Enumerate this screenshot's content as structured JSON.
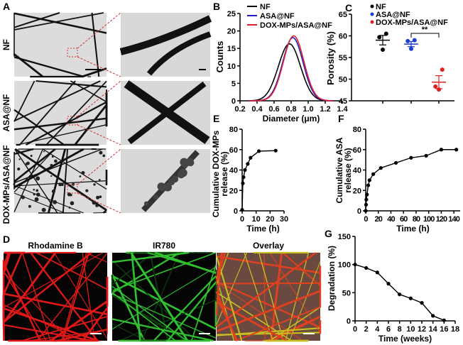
{
  "panel_labels": {
    "A": "A",
    "B": "B",
    "C": "C",
    "D": "D",
    "E": "E",
    "F": "F",
    "G": "G"
  },
  "panel_a": {
    "rows": [
      "NF",
      "ASA@NF",
      "DOX-MPs/ASA@NF"
    ]
  },
  "panel_d": {
    "channels": [
      "Rhodamine B",
      "IR780",
      "Overlay"
    ],
    "colors": {
      "rhodamine": "#e01010",
      "ir780": "#30c030"
    }
  },
  "chart_data": [
    {
      "id": "B",
      "type": "line",
      "xlabel": "Diameter (μm)",
      "ylabel": "Counts",
      "xlim": [
        0.2,
        1.4
      ],
      "ylim": [
        0,
        25
      ],
      "xticks": [
        "0.2",
        "0.4",
        "0.6",
        "0.8",
        "1.0",
        "1.2",
        "1.4"
      ],
      "yticks": [
        "0",
        "5",
        "10",
        "15",
        "20",
        "25"
      ],
      "legend": "top-right",
      "series": [
        {
          "name": "NF",
          "color": "#000000",
          "peak_x": 0.78,
          "peak_y": 16.3,
          "sd": 0.13
        },
        {
          "name": "ASA@NF",
          "color": "#2020c0",
          "peak_x": 0.82,
          "peak_y": 18.1,
          "sd": 0.12
        },
        {
          "name": "DOX-MPs/ASA@NF",
          "color": "#e02030",
          "peak_x": 0.83,
          "peak_y": 18.6,
          "sd": 0.12
        }
      ]
    },
    {
      "id": "C",
      "type": "scatter",
      "ylabel": "Porosity (%)",
      "ylim": [
        45,
        65
      ],
      "yticks": [
        "45",
        "50",
        "55",
        "60",
        "65"
      ],
      "legend": "top",
      "annotation": "**",
      "series": [
        {
          "name": "NF",
          "color": "#000000",
          "values": [
            60.5,
            59.7,
            56.8
          ],
          "mean": 59.0,
          "sem": 1.1
        },
        {
          "name": "ASA@NF",
          "color": "#1a3fd0",
          "values": [
            59.0,
            58.8,
            57.0
          ],
          "mean": 58.1,
          "sem": 0.6
        },
        {
          "name": "DOX-MPs/ASA@NF",
          "color": "#e02020",
          "values": [
            52.2,
            48.3,
            47.6
          ],
          "mean": 49.3,
          "sem": 1.5
        }
      ]
    },
    {
      "id": "E",
      "type": "line",
      "xlabel": "Time (h)",
      "ylabel": "Cumulative DOX-MPs release (%)",
      "xlim": [
        0,
        30
      ],
      "ylim": [
        0,
        80
      ],
      "xticks": [
        "0",
        "10",
        "20",
        "30"
      ],
      "yticks": [
        "0",
        "20",
        "40",
        "60",
        "80"
      ],
      "x": [
        0,
        0.5,
        1,
        2,
        4,
        6,
        12,
        24
      ],
      "y": [
        1,
        27,
        33,
        40,
        46,
        52,
        58.5,
        59
      ]
    },
    {
      "id": "F",
      "type": "line",
      "xlabel": "Time (h)",
      "ylabel": "Cumulative ASA release (%)",
      "xlim": [
        0,
        150
      ],
      "ylim": [
        0,
        80
      ],
      "xticks": [
        "0",
        "20",
        "40",
        "60",
        "80",
        "100",
        "120",
        "140"
      ],
      "yticks": [
        "0",
        "20",
        "40",
        "60",
        "80"
      ],
      "x": [
        0,
        0.5,
        1,
        2,
        4,
        6,
        12,
        24,
        48,
        72,
        96,
        120,
        144
      ],
      "y": [
        0,
        6,
        11,
        16,
        25,
        30,
        36,
        42,
        47,
        52,
        54,
        60,
        60
      ]
    },
    {
      "id": "G",
      "type": "line",
      "xlabel": "Time (weeks)",
      "ylabel": "Degradation (%)",
      "xlim": [
        0,
        18
      ],
      "ylim": [
        0,
        150
      ],
      "xticks": [
        "0",
        "2",
        "4",
        "6",
        "8",
        "10",
        "12",
        "14",
        "16",
        "18"
      ],
      "yticks": [
        "0",
        "50",
        "100",
        "150"
      ],
      "x": [
        0,
        2,
        4,
        6,
        8,
        10,
        12,
        14,
        16
      ],
      "y": [
        100,
        94,
        86,
        66,
        47,
        40,
        32,
        9,
        1
      ]
    }
  ]
}
